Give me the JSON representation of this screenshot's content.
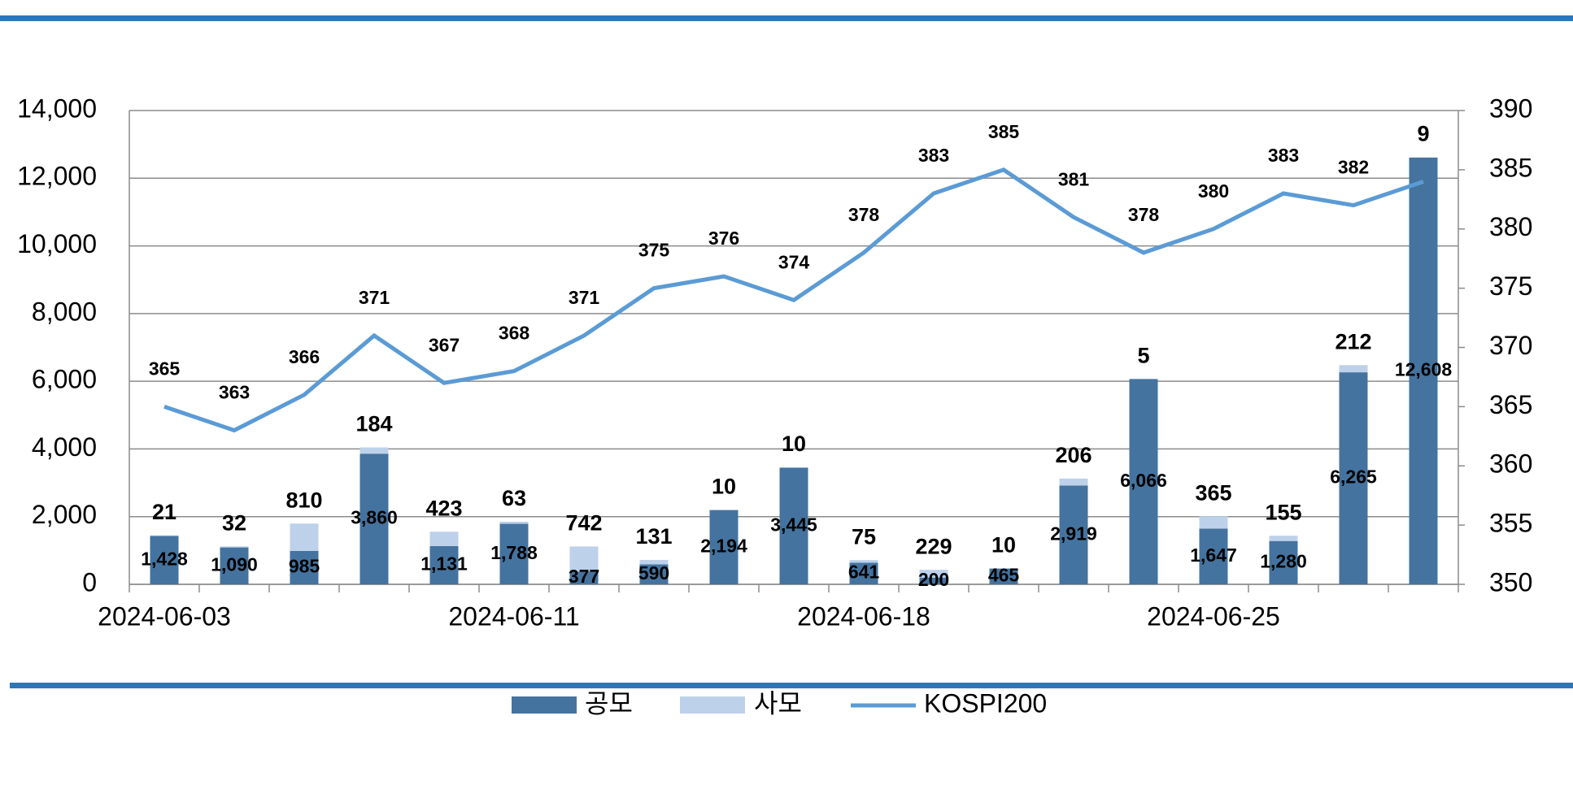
{
  "chart_data": {
    "type": "bar-line",
    "categories": [
      "2024-06-03",
      null,
      null,
      null,
      null,
      "2024-06-11",
      null,
      null,
      null,
      null,
      "2024-06-18",
      null,
      null,
      null,
      null,
      "2024-06-25",
      null,
      null,
      null
    ],
    "series": [
      {
        "name": "공모",
        "color": "#44739f",
        "values": [
          1428,
          1090,
          985,
          3860,
          1131,
          1788,
          377,
          590,
          2194,
          3445,
          641,
          200,
          465,
          2919,
          6066,
          1647,
          1280,
          6265,
          12608
        ],
        "value_labels": [
          "1,428",
          "1,090",
          "985",
          "3,860",
          "1,131",
          "1,788",
          "377",
          "590",
          "2,194",
          "3,445",
          "641",
          "200",
          "465",
          "2,919",
          "6,066",
          "1,647",
          "1,280",
          "6,265",
          "12,608"
        ]
      },
      {
        "name": "사모",
        "color": "#bdd1ea",
        "values": [
          21,
          32,
          810,
          184,
          423,
          63,
          742,
          131,
          10,
          10,
          75,
          229,
          10,
          206,
          5,
          365,
          155,
          212,
          9
        ]
      },
      {
        "name": "KOSPI200",
        "color": "#5b9bd5",
        "axis": "y2",
        "values": [
          365,
          363,
          366,
          371,
          367,
          368,
          371,
          375,
          376,
          374,
          378,
          383,
          385,
          381,
          378,
          380,
          383,
          382,
          384
        ],
        "value_labels": [
          "365",
          "363",
          "366",
          "371",
          "367",
          "368",
          "371",
          "375",
          "376",
          "374",
          "378",
          "383",
          "385",
          "381",
          "378",
          "380",
          "383",
          "382",
          null
        ]
      }
    ],
    "ylim": [
      0,
      14000
    ],
    "yticks": [
      0,
      {
        "value": 2000,
        "label": "2,000"
      },
      {
        "value": 4000,
        "label": "4,000"
      },
      {
        "value": 6000,
        "label": "6,000"
      },
      {
        "value": 8000,
        "label": "8,000"
      },
      {
        "value": 10000,
        "label": "10,000"
      },
      {
        "value": 12000,
        "label": "12,000"
      },
      {
        "value": 14000,
        "label": "14,000"
      }
    ],
    "y2lim": [
      350,
      390
    ],
    "y2ticks": [
      350,
      355,
      360,
      365,
      370,
      375,
      380,
      385,
      390
    ],
    "grid": true
  }
}
